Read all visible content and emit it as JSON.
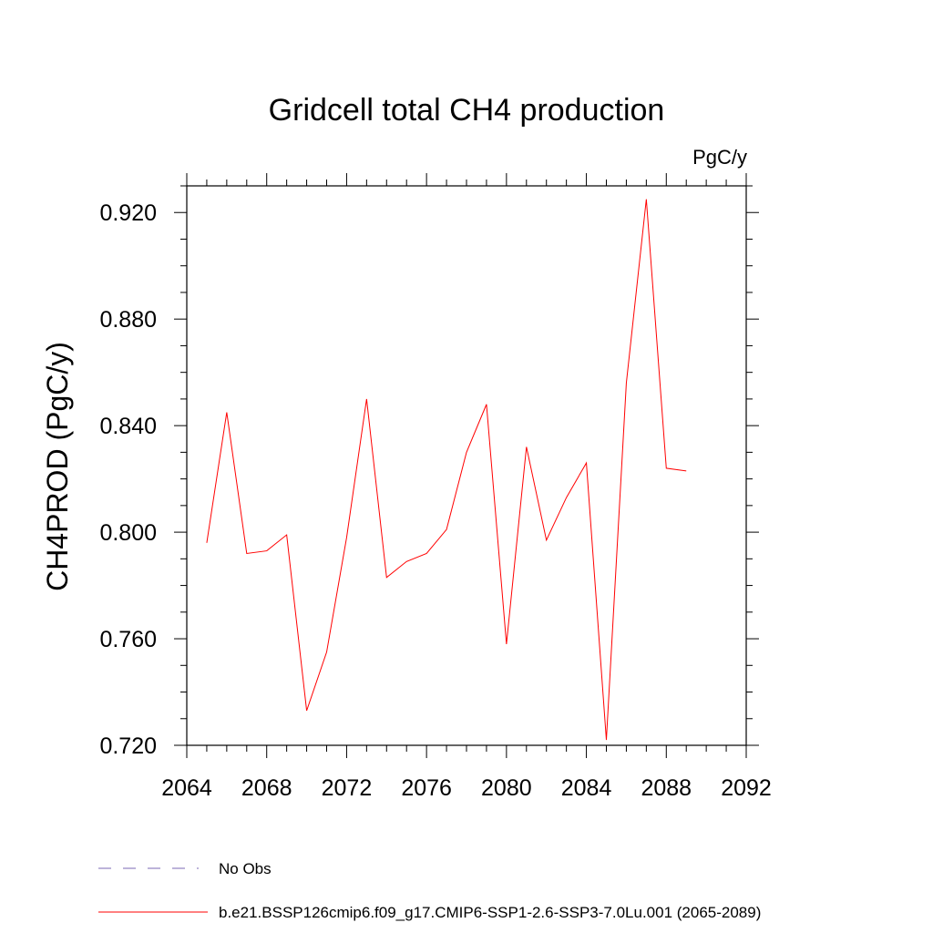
{
  "chart_data": {
    "type": "line",
    "title": "Gridcell total CH4 production",
    "units": "PgC/y",
    "xlabel": "",
    "ylabel": "CH4PROD  (PgC/y)",
    "xlim": [
      2064,
      2092
    ],
    "ylim": [
      0.72,
      0.93
    ],
    "x_ticks": [
      "2064",
      "2068",
      "2072",
      "2076",
      "2080",
      "2084",
      "2088",
      "2092"
    ],
    "y_ticks": [
      "0.720",
      "0.760",
      "0.800",
      "0.840",
      "0.880",
      "0.920"
    ],
    "grid": false,
    "legend_position": "bottom-left",
    "series": [
      {
        "name": "No Obs",
        "color": "#7b68b5",
        "style": "dashed",
        "x": [],
        "values": []
      },
      {
        "name": "b.e21.BSSP126cmip6.f09_g17.CMIP6-SSP1-2.6-SSP3-7.0Lu.001 (2065-2089)",
        "color": "#ff0000",
        "style": "solid",
        "x": [
          2065,
          2066,
          2067,
          2068,
          2069,
          2070,
          2071,
          2072,
          2073,
          2074,
          2075,
          2076,
          2077,
          2078,
          2079,
          2080,
          2081,
          2082,
          2083,
          2084,
          2085,
          2086,
          2087,
          2088,
          2089
        ],
        "values": [
          0.796,
          0.845,
          0.792,
          0.793,
          0.799,
          0.733,
          0.755,
          0.798,
          0.85,
          0.783,
          0.789,
          0.792,
          0.801,
          0.83,
          0.848,
          0.758,
          0.832,
          0.797,
          0.813,
          0.826,
          0.722,
          0.856,
          0.925,
          0.824,
          0.823
        ]
      }
    ]
  }
}
